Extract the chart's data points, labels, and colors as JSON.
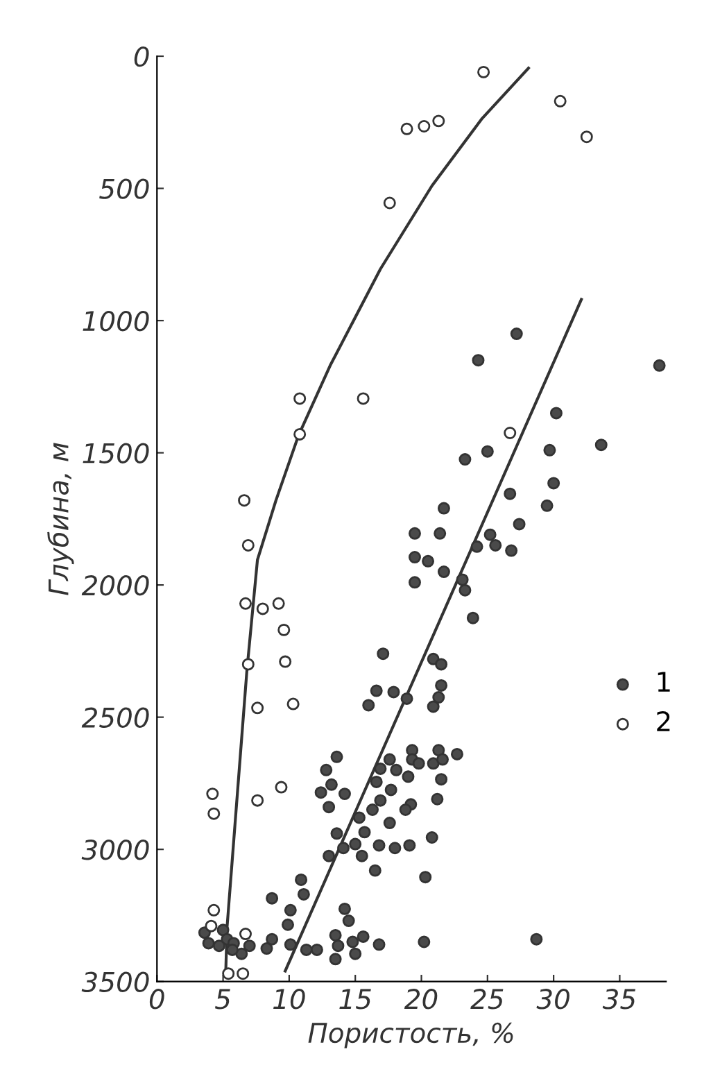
{
  "chart_data": {
    "type": "scatter",
    "xlabel": "Пористость, %",
    "ylabel": "Глубина, м",
    "xlim": [
      0,
      38.5
    ],
    "ylim": [
      3500,
      0
    ],
    "xticks": [
      0,
      5,
      10,
      15,
      20,
      25,
      30,
      35
    ],
    "yticks": [
      0,
      500,
      1000,
      1500,
      2000,
      2500,
      3000,
      3500
    ],
    "grid": false,
    "legend": "right",
    "marker": "circle",
    "series": [
      {
        "name": "1",
        "color": "#4a4a4a",
        "x": [
          27.2,
          24.3,
          38.0,
          30.2,
          23.3,
          25.0,
          29.7,
          33.6,
          30.0,
          26.7,
          29.5,
          21.7,
          27.4,
          19.5,
          21.4,
          25.2,
          24.2,
          25.6,
          26.8,
          19.5,
          20.5,
          21.7,
          19.5,
          23.1,
          23.3,
          23.9,
          17.1,
          20.9,
          21.5,
          21.5,
          21.3,
          20.9,
          16.6,
          17.9,
          18.9,
          16.0,
          13.6,
          12.8,
          17.6,
          19.3,
          19.3,
          19.8,
          21.3,
          20.9,
          21.6,
          22.7,
          16.9,
          18.1,
          19.0,
          16.6,
          21.5,
          12.4,
          13.2,
          14.2,
          17.7,
          13.0,
          16.9,
          21.2,
          16.3,
          19.2,
          18.8,
          15.3,
          17.6,
          13.6,
          15.7,
          15.0,
          14.1,
          13.0,
          15.5,
          16.8,
          18.0,
          19.1,
          20.8,
          16.5,
          20.3,
          10.9,
          11.1,
          8.7,
          10.1,
          9.9,
          14.2,
          14.5,
          13.5,
          15.6,
          14.8,
          13.7,
          15.0,
          13.5,
          16.8,
          20.2,
          28.7,
          8.7,
          8.3,
          10.1,
          11.3,
          12.1,
          3.6,
          3.9,
          5.0,
          5.3,
          4.7,
          5.8,
          6.4,
          7.0,
          5.7
        ],
        "values": [
          1050,
          1150,
          1170,
          1350,
          1525,
          1495,
          1490,
          1470,
          1615,
          1655,
          1700,
          1710,
          1770,
          1805,
          1805,
          1810,
          1855,
          1850,
          1870,
          1895,
          1910,
          1950,
          1990,
          1980,
          2020,
          2125,
          2260,
          2280,
          2300,
          2380,
          2425,
          2460,
          2400,
          2405,
          2430,
          2455,
          2650,
          2700,
          2660,
          2625,
          2660,
          2675,
          2625,
          2675,
          2660,
          2640,
          2695,
          2700,
          2725,
          2745,
          2735,
          2785,
          2755,
          2790,
          2775,
          2840,
          2815,
          2810,
          2850,
          2830,
          2850,
          2880,
          2900,
          2940,
          2935,
          2980,
          2995,
          3025,
          3025,
          2985,
          2995,
          2985,
          2955,
          3080,
          3105,
          3115,
          3170,
          3185,
          3230,
          3285,
          3225,
          3270,
          3325,
          3330,
          3350,
          3365,
          3395,
          3415,
          3360,
          3350,
          3340,
          3340,
          3375,
          3360,
          3380,
          3380,
          3315,
          3355,
          3305,
          3340,
          3365,
          3355,
          3395,
          3365,
          3380
        ]
      },
      {
        "name": "2",
        "color": "#ffffff",
        "x": [
          24.7,
          30.5,
          32.5,
          18.9,
          20.2,
          21.3,
          17.6,
          10.8,
          15.6,
          10.8,
          6.6,
          6.9,
          6.7,
          8.0,
          9.2,
          9.6,
          9.7,
          6.9,
          7.6,
          10.3,
          4.2,
          4.3,
          9.4,
          7.6,
          4.3,
          4.1,
          6.7,
          5.4,
          6.5,
          26.7
        ],
        "values": [
          60,
          170,
          305,
          275,
          265,
          245,
          555,
          1295,
          1295,
          1430,
          1680,
          1850,
          2070,
          2090,
          2070,
          2170,
          2290,
          2300,
          2465,
          2450,
          2790,
          2865,
          2765,
          2815,
          3230,
          3290,
          3320,
          3470,
          3470,
          1425
        ]
      },
      {
        "type": "line",
        "color": "#333333",
        "marker": "none",
        "x": [
          9.7,
          32.1
        ],
        "values": [
          3460,
          920
        ]
      },
      {
        "type": "line",
        "color": "#333333",
        "marker": "none",
        "x": [
          5.2,
          5.3,
          6.8,
          7.6,
          9.0,
          10.7,
          13.1,
          16.9,
          20.8,
          24.6,
          28.1
        ],
        "values": [
          3470,
          3295,
          2325,
          1905,
          1680,
          1435,
          1170,
          805,
          490,
          235,
          45
        ]
      }
    ]
  }
}
